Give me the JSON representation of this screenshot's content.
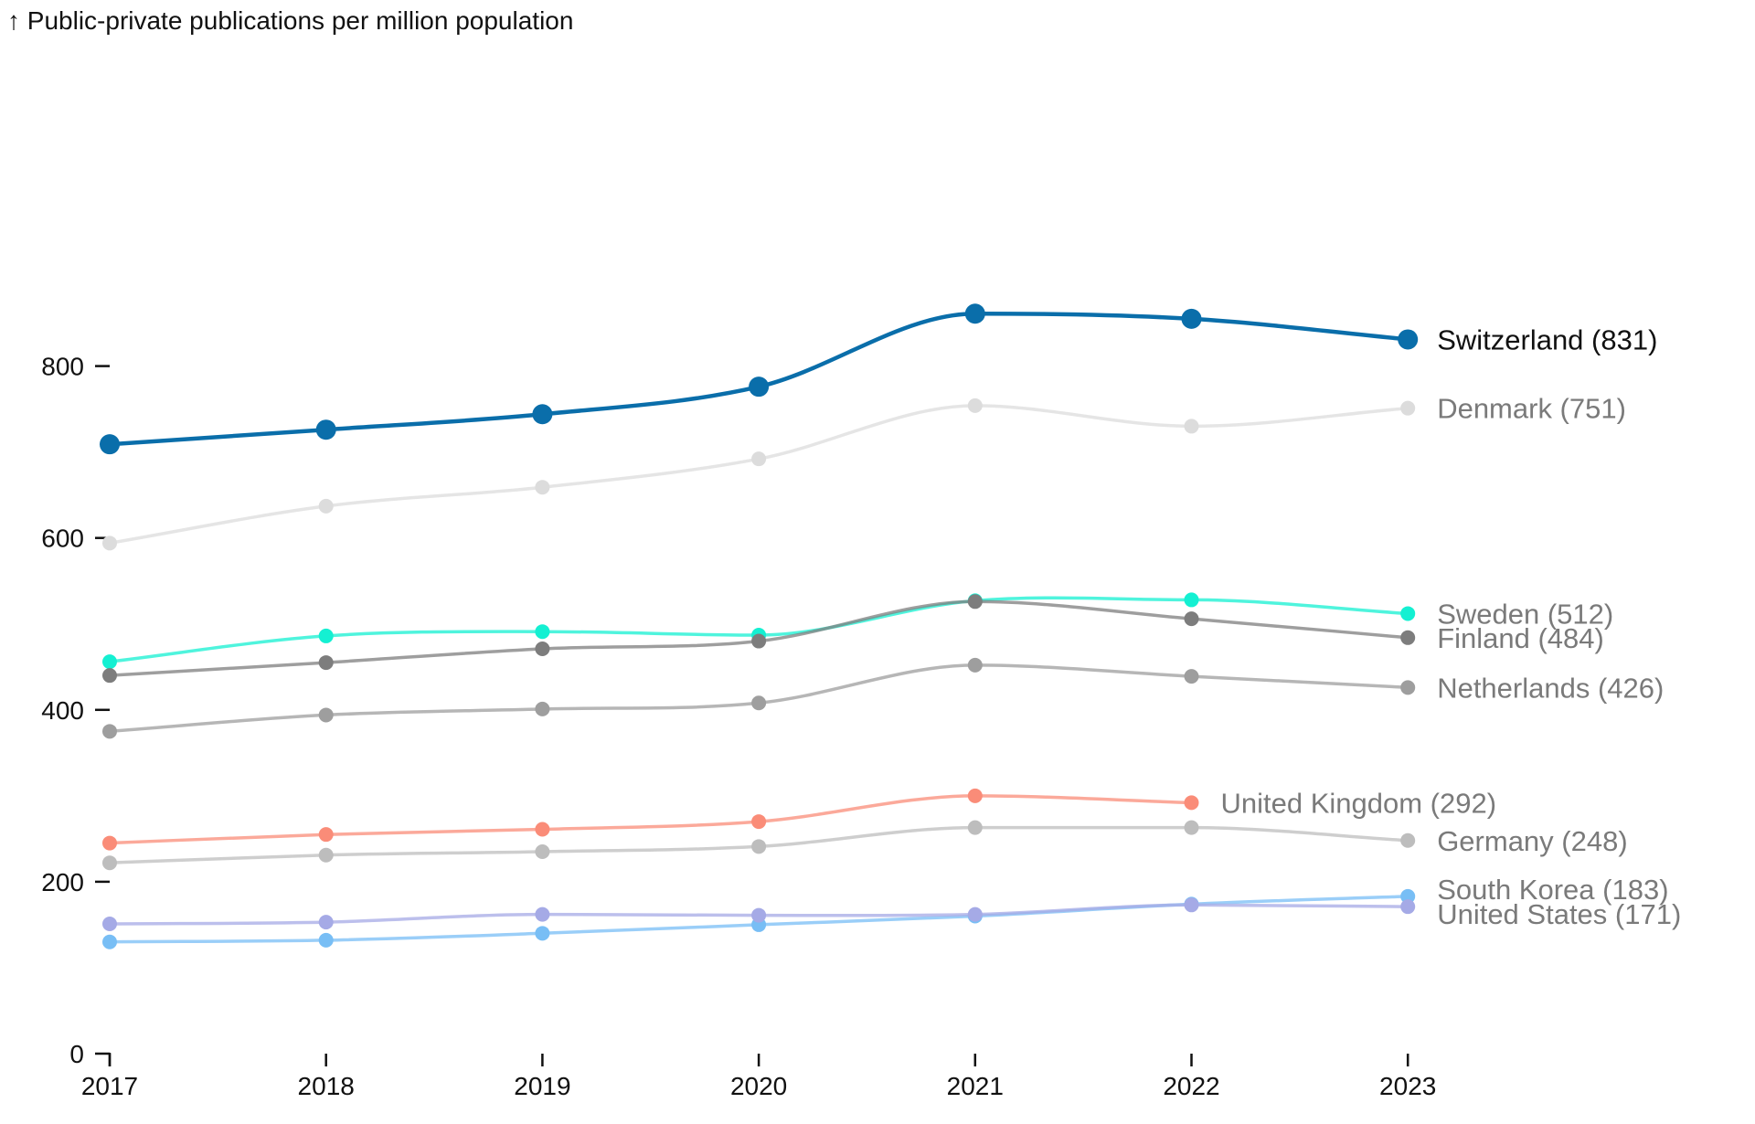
{
  "chart_data": {
    "type": "line",
    "ylabel": "↑ Public-private publications per million population",
    "ylim": [
      0,
      900
    ],
    "yticks": [
      0,
      200,
      400,
      600,
      800
    ],
    "x": [
      "2017",
      "2018",
      "2019",
      "2020",
      "2021",
      "2022",
      "2023"
    ],
    "grid": false,
    "series": [
      {
        "name": "Switzerland",
        "label": "Switzerland (831)",
        "color": "#0a6eaa",
        "highlight": true,
        "values": [
          709,
          726,
          744,
          776,
          861,
          855,
          831
        ]
      },
      {
        "name": "Denmark",
        "label": "Denmark (751)",
        "color": "#dcdcdc",
        "values": [
          594,
          637,
          659,
          692,
          754,
          730,
          751
        ]
      },
      {
        "name": "Sweden",
        "label": "Sweden (512)",
        "color": "#14f0d2",
        "values": [
          456,
          486,
          491,
          487,
          527,
          528,
          512
        ]
      },
      {
        "name": "Finland",
        "label": "Finland (484)",
        "color": "#7d7d7d",
        "values": [
          440,
          455,
          471,
          480,
          526,
          506,
          484
        ]
      },
      {
        "name": "Netherlands",
        "label": "Netherlands (426)",
        "color": "#9e9e9e",
        "values": [
          375,
          394,
          401,
          408,
          452,
          439,
          426
        ]
      },
      {
        "name": "United Kingdom",
        "label": "United Kingdom (292)",
        "color": "#fa8c78",
        "values": [
          245,
          255,
          261,
          270,
          300,
          292,
          null
        ]
      },
      {
        "name": "Germany",
        "label": "Germany (248)",
        "color": "#bdbdbd",
        "values": [
          222,
          231,
          235,
          241,
          263,
          263,
          248
        ]
      },
      {
        "name": "South Korea",
        "label": "South Korea (183)",
        "color": "#78bef5",
        "values": [
          130,
          132,
          140,
          150,
          160,
          174,
          183
        ]
      },
      {
        "name": "United States",
        "label": "United States (171)",
        "color": "#a5aae6",
        "values": [
          151,
          153,
          162,
          161,
          162,
          173,
          171
        ]
      }
    ]
  }
}
